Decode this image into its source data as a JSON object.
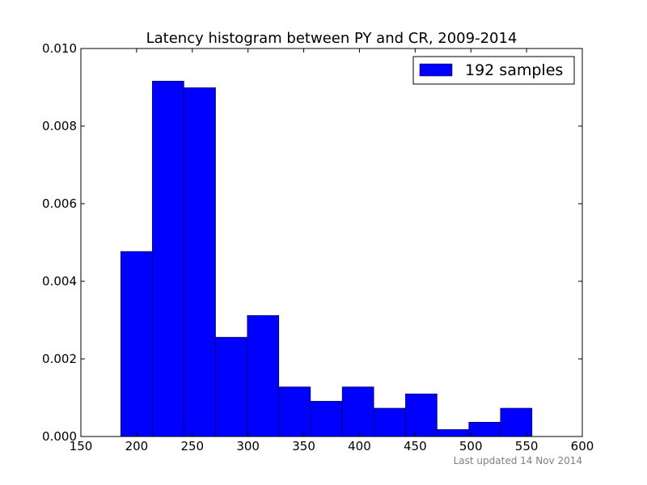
{
  "chart_data": {
    "type": "bar",
    "title": "Latency histogram between PY and CR, 2009-2014",
    "xlabel": "",
    "ylabel": "",
    "xlim": [
      150,
      600
    ],
    "ylim": [
      0,
      0.01
    ],
    "x_ticks": [
      "150",
      "200",
      "250",
      "300",
      "350",
      "400",
      "450",
      "500",
      "550",
      "600"
    ],
    "y_ticks": [
      "0.000",
      "0.002",
      "0.004",
      "0.006",
      "0.008",
      "0.010"
    ],
    "bin_edges": [
      185.7,
      214.1,
      242.5,
      270.9,
      299.3,
      327.7,
      356.1,
      384.5,
      412.9,
      441.3,
      469.7,
      498.1,
      526.5,
      554.9
    ],
    "values": [
      0.00477,
      0.00916,
      0.00899,
      0.00256,
      0.00312,
      0.00128,
      0.00091,
      0.00128,
      0.00073,
      0.0011,
      0.00018,
      0.00037,
      0.00073
    ],
    "series": [
      {
        "name": "192 samples",
        "color": "#0000ff"
      }
    ],
    "legend_position": "top-right",
    "grid": false
  },
  "footnote": "Last updated 14 Nov 2014"
}
